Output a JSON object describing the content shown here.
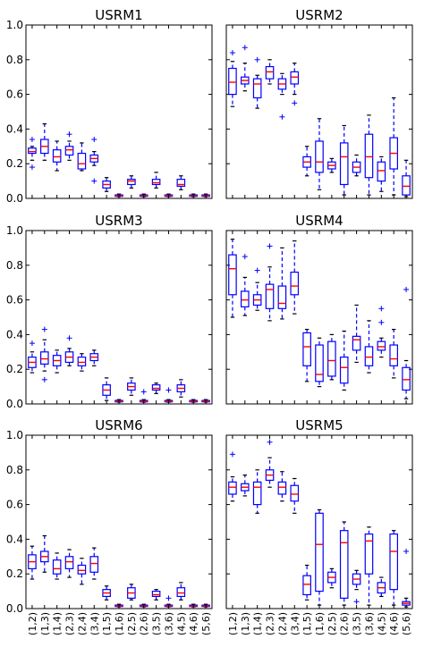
{
  "chart_data": [
    {
      "type": "box",
      "title": "USRM1",
      "ylim": [
        0,
        1.0
      ],
      "yticks": [
        "0.0",
        "0.2",
        "0.4",
        "0.6",
        "0.8",
        "1.0"
      ],
      "categories": [
        "(1,2)",
        "(1,3)",
        "(1,4)",
        "(2,3)",
        "(2,4)",
        "(3,4)",
        "(1,5)",
        "(1,6)",
        "(2,5)",
        "(2,6)",
        "(3,5)",
        "(3,6)",
        "(4,5)",
        "(4,6)",
        "(5,6)"
      ],
      "boxes": [
        {
          "whislo": 0.22,
          "q1": 0.26,
          "med": 0.27,
          "q3": 0.29,
          "whishi": 0.3,
          "fliers": [
            0.18,
            0.34
          ]
        },
        {
          "whislo": 0.22,
          "q1": 0.26,
          "med": 0.3,
          "q3": 0.34,
          "whishi": 0.43,
          "fliers": []
        },
        {
          "whislo": 0.16,
          "q1": 0.21,
          "med": 0.24,
          "q3": 0.28,
          "whishi": 0.33,
          "fliers": []
        },
        {
          "whislo": 0.22,
          "q1": 0.25,
          "med": 0.28,
          "q3": 0.3,
          "whishi": 0.33,
          "fliers": [
            0.37
          ]
        },
        {
          "whislo": 0.16,
          "q1": 0.17,
          "med": 0.2,
          "q3": 0.26,
          "whishi": 0.32,
          "fliers": []
        },
        {
          "whislo": 0.19,
          "q1": 0.21,
          "med": 0.23,
          "q3": 0.25,
          "whishi": 0.27,
          "fliers": [
            0.1,
            0.34
          ]
        },
        {
          "whislo": 0.04,
          "q1": 0.06,
          "med": 0.08,
          "q3": 0.1,
          "whishi": 0.12,
          "fliers": []
        },
        {
          "whislo": 0.01,
          "q1": 0.012,
          "med": 0.015,
          "q3": 0.02,
          "whishi": 0.025,
          "fliers": []
        },
        {
          "whislo": 0.06,
          "q1": 0.08,
          "med": 0.1,
          "q3": 0.11,
          "whishi": 0.13,
          "fliers": []
        },
        {
          "whislo": 0.01,
          "q1": 0.012,
          "med": 0.015,
          "q3": 0.02,
          "whishi": 0.025,
          "fliers": []
        },
        {
          "whislo": 0.06,
          "q1": 0.08,
          "med": 0.09,
          "q3": 0.11,
          "whishi": 0.15,
          "fliers": []
        },
        {
          "whislo": 0.01,
          "q1": 0.012,
          "med": 0.015,
          "q3": 0.02,
          "whishi": 0.025,
          "fliers": []
        },
        {
          "whislo": 0.05,
          "q1": 0.07,
          "med": 0.08,
          "q3": 0.11,
          "whishi": 0.13,
          "fliers": []
        },
        {
          "whislo": 0.01,
          "q1": 0.012,
          "med": 0.015,
          "q3": 0.02,
          "whishi": 0.025,
          "fliers": []
        },
        {
          "whislo": 0.01,
          "q1": 0.012,
          "med": 0.015,
          "q3": 0.02,
          "whishi": 0.025,
          "fliers": []
        }
      ]
    },
    {
      "type": "box",
      "title": "USRM2",
      "ylim": [
        0,
        1.0
      ],
      "yticks": [
        "0.0",
        "0.2",
        "0.4",
        "0.6",
        "0.8",
        "1.0"
      ],
      "categories": [
        "(1,2)",
        "(1,3)",
        "(1,4)",
        "(2,3)",
        "(2,4)",
        "(3,4)",
        "(1,5)",
        "(1,6)",
        "(2,5)",
        "(2,6)",
        "(3,5)",
        "(3,6)",
        "(4,5)",
        "(4,6)",
        "(5,6)"
      ],
      "boxes": [
        {
          "whislo": 0.53,
          "q1": 0.6,
          "med": 0.67,
          "q3": 0.75,
          "whishi": 0.79,
          "fliers": [
            0.84
          ]
        },
        {
          "whislo": 0.62,
          "q1": 0.66,
          "med": 0.68,
          "q3": 0.7,
          "whishi": 0.78,
          "fliers": [
            0.87
          ]
        },
        {
          "whislo": 0.52,
          "q1": 0.58,
          "med": 0.66,
          "q3": 0.69,
          "whishi": 0.71,
          "fliers": [
            0.8
          ]
        },
        {
          "whislo": 0.66,
          "q1": 0.69,
          "med": 0.73,
          "q3": 0.76,
          "whishi": 0.8,
          "fliers": []
        },
        {
          "whislo": 0.6,
          "q1": 0.63,
          "med": 0.66,
          "q3": 0.69,
          "whishi": 0.72,
          "fliers": [
            0.47
          ]
        },
        {
          "whislo": 0.6,
          "q1": 0.66,
          "med": 0.7,
          "q3": 0.73,
          "whishi": 0.78,
          "fliers": [
            0.55
          ]
        },
        {
          "whislo": 0.13,
          "q1": 0.18,
          "med": 0.21,
          "q3": 0.24,
          "whishi": 0.3,
          "fliers": []
        },
        {
          "whislo": 0.05,
          "q1": 0.15,
          "med": 0.21,
          "q3": 0.33,
          "whishi": 0.46,
          "fliers": []
        },
        {
          "whislo": 0.15,
          "q1": 0.17,
          "med": 0.19,
          "q3": 0.21,
          "whishi": 0.23,
          "fliers": []
        },
        {
          "whislo": 0.02,
          "q1": 0.08,
          "med": 0.24,
          "q3": 0.32,
          "whishi": 0.42,
          "fliers": []
        },
        {
          "whislo": 0.13,
          "q1": 0.15,
          "med": 0.18,
          "q3": 0.21,
          "whishi": 0.25,
          "fliers": []
        },
        {
          "whislo": 0.02,
          "q1": 0.12,
          "med": 0.24,
          "q3": 0.37,
          "whishi": 0.48,
          "fliers": []
        },
        {
          "whislo": 0.04,
          "q1": 0.1,
          "med": 0.16,
          "q3": 0.21,
          "whishi": 0.24,
          "fliers": []
        },
        {
          "whislo": 0.02,
          "q1": 0.17,
          "med": 0.26,
          "q3": 0.35,
          "whishi": 0.58,
          "fliers": []
        },
        {
          "whislo": 0.01,
          "q1": 0.02,
          "med": 0.07,
          "q3": 0.13,
          "whishi": 0.22,
          "fliers": []
        }
      ]
    },
    {
      "type": "box",
      "title": "USRM3",
      "ylim": [
        0,
        1.0
      ],
      "yticks": [
        "0.0",
        "0.2",
        "0.4",
        "0.6",
        "0.8",
        "1.0"
      ],
      "categories": [
        "(1,2)",
        "(1,3)",
        "(1,4)",
        "(2,3)",
        "(2,4)",
        "(3,4)",
        "(1,5)",
        "(1,6)",
        "(2,5)",
        "(2,6)",
        "(3,5)",
        "(3,6)",
        "(4,5)",
        "(4,6)",
        "(5,6)"
      ],
      "boxes": [
        {
          "whislo": 0.18,
          "q1": 0.21,
          "med": 0.24,
          "q3": 0.27,
          "whishi": 0.3,
          "fliers": [
            0.35
          ]
        },
        {
          "whislo": 0.19,
          "q1": 0.23,
          "med": 0.26,
          "q3": 0.3,
          "whishi": 0.37,
          "fliers": [
            0.14,
            0.43
          ]
        },
        {
          "whislo": 0.18,
          "q1": 0.22,
          "med": 0.25,
          "q3": 0.28,
          "whishi": 0.31,
          "fliers": []
        },
        {
          "whislo": 0.22,
          "q1": 0.24,
          "med": 0.27,
          "q3": 0.3,
          "whishi": 0.32,
          "fliers": [
            0.38
          ]
        },
        {
          "whislo": 0.19,
          "q1": 0.22,
          "med": 0.24,
          "q3": 0.27,
          "whishi": 0.29,
          "fliers": []
        },
        {
          "whislo": 0.22,
          "q1": 0.25,
          "med": 0.27,
          "q3": 0.29,
          "whishi": 0.31,
          "fliers": []
        },
        {
          "whislo": 0.02,
          "q1": 0.05,
          "med": 0.08,
          "q3": 0.11,
          "whishi": 0.15,
          "fliers": []
        },
        {
          "whislo": 0.01,
          "q1": 0.012,
          "med": 0.015,
          "q3": 0.02,
          "whishi": 0.025,
          "fliers": []
        },
        {
          "whislo": 0.05,
          "q1": 0.08,
          "med": 0.1,
          "q3": 0.12,
          "whishi": 0.15,
          "fliers": []
        },
        {
          "whislo": 0.01,
          "q1": 0.012,
          "med": 0.015,
          "q3": 0.02,
          "whishi": 0.025,
          "fliers": [
            0.07
          ]
        },
        {
          "whislo": 0.06,
          "q1": 0.08,
          "med": 0.09,
          "q3": 0.11,
          "whishi": 0.12,
          "fliers": []
        },
        {
          "whislo": 0.01,
          "q1": 0.012,
          "med": 0.015,
          "q3": 0.02,
          "whishi": 0.025,
          "fliers": [
            0.08
          ]
        },
        {
          "whislo": 0.04,
          "q1": 0.07,
          "med": 0.09,
          "q3": 0.11,
          "whishi": 0.14,
          "fliers": []
        },
        {
          "whislo": 0.01,
          "q1": 0.012,
          "med": 0.015,
          "q3": 0.02,
          "whishi": 0.025,
          "fliers": []
        },
        {
          "whislo": 0.01,
          "q1": 0.012,
          "med": 0.015,
          "q3": 0.02,
          "whishi": 0.025,
          "fliers": []
        }
      ]
    },
    {
      "type": "box",
      "title": "USRM4",
      "ylim": [
        0,
        1.0
      ],
      "yticks": [
        "0.0",
        "0.2",
        "0.4",
        "0.6",
        "0.8",
        "1.0"
      ],
      "categories": [
        "(1,2)",
        "(1,3)",
        "(1,4)",
        "(2,3)",
        "(2,4)",
        "(3,4)",
        "(1,5)",
        "(1,6)",
        "(2,5)",
        "(2,6)",
        "(3,5)",
        "(3,6)",
        "(4,5)",
        "(4,6)",
        "(5,6)"
      ],
      "boxes": [
        {
          "whislo": 0.5,
          "q1": 0.63,
          "med": 0.78,
          "q3": 0.86,
          "whishi": 0.95,
          "fliers": []
        },
        {
          "whislo": 0.51,
          "q1": 0.56,
          "med": 0.6,
          "q3": 0.65,
          "whishi": 0.73,
          "fliers": [
            0.85
          ]
        },
        {
          "whislo": 0.54,
          "q1": 0.57,
          "med": 0.6,
          "q3": 0.63,
          "whishi": 0.7,
          "fliers": [
            0.77
          ]
        },
        {
          "whislo": 0.48,
          "q1": 0.55,
          "med": 0.66,
          "q3": 0.69,
          "whishi": 0.79,
          "fliers": [
            0.91
          ]
        },
        {
          "whislo": 0.49,
          "q1": 0.55,
          "med": 0.58,
          "q3": 0.68,
          "whishi": 0.9,
          "fliers": []
        },
        {
          "whislo": 0.52,
          "q1": 0.63,
          "med": 0.68,
          "q3": 0.76,
          "whishi": 0.94,
          "fliers": []
        },
        {
          "whislo": 0.13,
          "q1": 0.22,
          "med": 0.33,
          "q3": 0.41,
          "whishi": 0.43,
          "fliers": []
        },
        {
          "whislo": 0.1,
          "q1": 0.13,
          "med": 0.17,
          "q3": 0.34,
          "whishi": 0.38,
          "fliers": []
        },
        {
          "whislo": 0.14,
          "q1": 0.16,
          "med": 0.25,
          "q3": 0.36,
          "whishi": 0.4,
          "fliers": []
        },
        {
          "whislo": 0.08,
          "q1": 0.12,
          "med": 0.21,
          "q3": 0.27,
          "whishi": 0.42,
          "fliers": []
        },
        {
          "whislo": 0.24,
          "q1": 0.31,
          "med": 0.37,
          "q3": 0.39,
          "whishi": 0.57,
          "fliers": []
        },
        {
          "whislo": 0.18,
          "q1": 0.22,
          "med": 0.27,
          "q3": 0.33,
          "whishi": 0.48,
          "fliers": []
        },
        {
          "whislo": 0.27,
          "q1": 0.31,
          "med": 0.33,
          "q3": 0.36,
          "whishi": 0.38,
          "fliers": [
            0.47,
            0.55
          ]
        },
        {
          "whislo": 0.15,
          "q1": 0.22,
          "med": 0.26,
          "q3": 0.34,
          "whishi": 0.43,
          "fliers": []
        },
        {
          "whislo": 0.03,
          "q1": 0.08,
          "med": 0.14,
          "q3": 0.21,
          "whishi": 0.25,
          "fliers": [
            0.66
          ]
        }
      ]
    },
    {
      "type": "box",
      "title": "USRM6",
      "ylim": [
        0,
        1.0
      ],
      "yticks": [
        "0.0",
        "0.2",
        "0.4",
        "0.6",
        "0.8",
        "1.0"
      ],
      "categories": [
        "(1,2)",
        "(1,3)",
        "(1,4)",
        "(2,3)",
        "(2,4)",
        "(3,4)",
        "(1,5)",
        "(1,6)",
        "(2,5)",
        "(2,6)",
        "(3,5)",
        "(3,6)",
        "(4,5)",
        "(4,6)",
        "(5,6)"
      ],
      "boxes": [
        {
          "whislo": 0.17,
          "q1": 0.23,
          "med": 0.27,
          "q3": 0.31,
          "whishi": 0.36,
          "fliers": []
        },
        {
          "whislo": 0.21,
          "q1": 0.27,
          "med": 0.3,
          "q3": 0.33,
          "whishi": 0.42,
          "fliers": []
        },
        {
          "whislo": 0.17,
          "q1": 0.2,
          "med": 0.23,
          "q3": 0.28,
          "whishi": 0.32,
          "fliers": []
        },
        {
          "whislo": 0.18,
          "q1": 0.23,
          "med": 0.27,
          "q3": 0.3,
          "whishi": 0.34,
          "fliers": []
        },
        {
          "whislo": 0.14,
          "q1": 0.2,
          "med": 0.22,
          "q3": 0.25,
          "whishi": 0.29,
          "fliers": []
        },
        {
          "whislo": 0.17,
          "q1": 0.21,
          "med": 0.26,
          "q3": 0.3,
          "whishi": 0.35,
          "fliers": []
        },
        {
          "whislo": 0.05,
          "q1": 0.07,
          "med": 0.09,
          "q3": 0.11,
          "whishi": 0.13,
          "fliers": []
        },
        {
          "whislo": 0.01,
          "q1": 0.012,
          "med": 0.015,
          "q3": 0.02,
          "whishi": 0.025,
          "fliers": []
        },
        {
          "whislo": 0.05,
          "q1": 0.06,
          "med": 0.09,
          "q3": 0.12,
          "whishi": 0.14,
          "fliers": []
        },
        {
          "whislo": 0.01,
          "q1": 0.012,
          "med": 0.015,
          "q3": 0.02,
          "whishi": 0.025,
          "fliers": []
        },
        {
          "whislo": 0.05,
          "q1": 0.07,
          "med": 0.08,
          "q3": 0.1,
          "whishi": 0.11,
          "fliers": []
        },
        {
          "whislo": 0.01,
          "q1": 0.012,
          "med": 0.015,
          "q3": 0.02,
          "whishi": 0.025,
          "fliers": [
            0.06
          ]
        },
        {
          "whislo": 0.05,
          "q1": 0.07,
          "med": 0.09,
          "q3": 0.12,
          "whishi": 0.15,
          "fliers": []
        },
        {
          "whislo": 0.01,
          "q1": 0.012,
          "med": 0.015,
          "q3": 0.02,
          "whishi": 0.025,
          "fliers": []
        },
        {
          "whislo": 0.01,
          "q1": 0.012,
          "med": 0.015,
          "q3": 0.02,
          "whishi": 0.025,
          "fliers": []
        }
      ]
    },
    {
      "type": "box",
      "title": "USRM5",
      "ylim": [
        0,
        1.0
      ],
      "yticks": [
        "0.0",
        "0.2",
        "0.4",
        "0.6",
        "0.8",
        "1.0"
      ],
      "categories": [
        "(1,2)",
        "(1,3)",
        "(1,4)",
        "(2,3)",
        "(2,4)",
        "(3,4)",
        "(1,5)",
        "(1,6)",
        "(2,5)",
        "(2,6)",
        "(3,5)",
        "(3,6)",
        "(4,5)",
        "(4,6)",
        "(5,6)"
      ],
      "boxes": [
        {
          "whislo": 0.62,
          "q1": 0.66,
          "med": 0.7,
          "q3": 0.73,
          "whishi": 0.76,
          "fliers": [
            0.89
          ]
        },
        {
          "whislo": 0.65,
          "q1": 0.68,
          "med": 0.7,
          "q3": 0.72,
          "whishi": 0.77,
          "fliers": []
        },
        {
          "whislo": 0.55,
          "q1": 0.6,
          "med": 0.7,
          "q3": 0.73,
          "whishi": 0.8,
          "fliers": []
        },
        {
          "whislo": 0.7,
          "q1": 0.74,
          "med": 0.77,
          "q3": 0.8,
          "whishi": 0.87,
          "fliers": [
            0.96
          ]
        },
        {
          "whislo": 0.62,
          "q1": 0.66,
          "med": 0.7,
          "q3": 0.73,
          "whishi": 0.79,
          "fliers": []
        },
        {
          "whislo": 0.55,
          "q1": 0.62,
          "med": 0.66,
          "q3": 0.71,
          "whishi": 0.75,
          "fliers": []
        },
        {
          "whislo": 0.05,
          "q1": 0.08,
          "med": 0.14,
          "q3": 0.19,
          "whishi": 0.25,
          "fliers": []
        },
        {
          "whislo": 0.02,
          "q1": 0.1,
          "med": 0.37,
          "q3": 0.55,
          "whishi": 0.57,
          "fliers": []
        },
        {
          "whislo": 0.12,
          "q1": 0.15,
          "med": 0.18,
          "q3": 0.21,
          "whishi": 0.23,
          "fliers": []
        },
        {
          "whislo": 0.02,
          "q1": 0.06,
          "med": 0.38,
          "q3": 0.45,
          "whishi": 0.5,
          "fliers": []
        },
        {
          "whislo": 0.11,
          "q1": 0.14,
          "med": 0.17,
          "q3": 0.2,
          "whishi": 0.22,
          "fliers": [
            0.04
          ]
        },
        {
          "whislo": 0.02,
          "q1": 0.2,
          "med": 0.39,
          "q3": 0.43,
          "whishi": 0.47,
          "fliers": []
        },
        {
          "whislo": 0.07,
          "q1": 0.09,
          "med": 0.12,
          "q3": 0.15,
          "whishi": 0.18,
          "fliers": []
        },
        {
          "whislo": 0.02,
          "q1": 0.11,
          "med": 0.33,
          "q3": 0.43,
          "whishi": 0.45,
          "fliers": []
        },
        {
          "whislo": 0.01,
          "q1": 0.02,
          "med": 0.03,
          "q3": 0.04,
          "whishi": 0.06,
          "fliers": [
            0.33
          ]
        }
      ]
    }
  ],
  "colors": {
    "box": "#0000ff",
    "median": "#ff0000",
    "flier": "#0000ff",
    "axes": "#000000"
  }
}
